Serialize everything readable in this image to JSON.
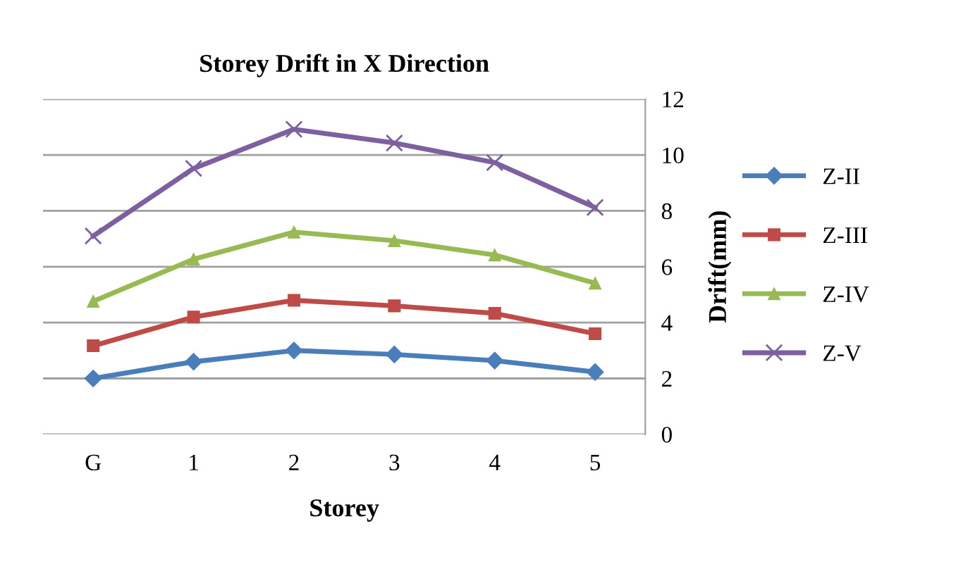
{
  "chart_data": {
    "type": "line",
    "title": "Storey Drift in X Direction",
    "xlabel": "Storey",
    "ylabel": "Drift(mm)",
    "categories": [
      "G",
      "1",
      "2",
      "3",
      "4",
      "5"
    ],
    "series": [
      {
        "name": "Z-II",
        "color": "#4a7ebb",
        "marker": "diamond",
        "values": [
          2.0,
          2.6,
          3.0,
          2.86,
          2.64,
          2.23
        ]
      },
      {
        "name": "Z-III",
        "color": "#be4b48",
        "marker": "square",
        "values": [
          3.17,
          4.2,
          4.8,
          4.6,
          4.33,
          3.6
        ]
      },
      {
        "name": "Z-IV",
        "color": "#98b954",
        "marker": "triangle",
        "values": [
          4.76,
          6.27,
          7.24,
          6.93,
          6.42,
          5.41
        ]
      },
      {
        "name": "Z-V",
        "color": "#7d60a0",
        "marker": "cross",
        "values": [
          7.1,
          9.52,
          10.92,
          10.43,
          9.73,
          8.12
        ]
      }
    ],
    "ylim": [
      0,
      12
    ],
    "yticks": [
      0,
      2,
      4,
      6,
      8,
      10,
      12
    ],
    "grid": "y",
    "legend": "right",
    "line_style": "solid"
  }
}
